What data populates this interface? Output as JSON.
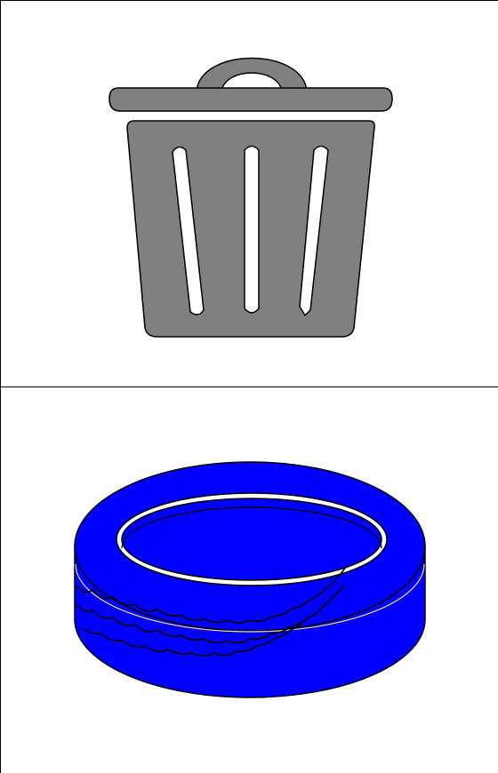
{
  "cards": [
    {
      "icon": "trash-can-icon",
      "color": "#808080"
    },
    {
      "icon": "tire-icon",
      "color": "#0000ff"
    }
  ],
  "colors": {
    "background": "#ffffff",
    "border": "#000000",
    "trash_fill": "#808080",
    "tire_fill": "#0000ff"
  }
}
